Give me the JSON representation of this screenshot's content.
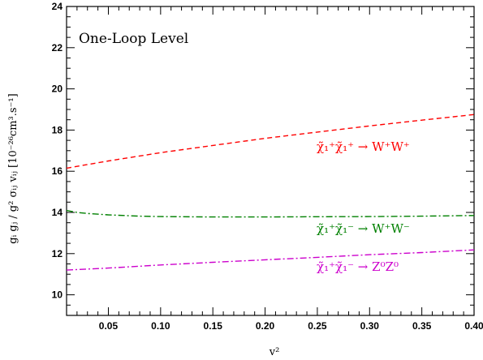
{
  "chart_data": {
    "type": "line",
    "annotation": "One-Loop Level",
    "xlabel": "v²",
    "ylabel": "gᵢ gⱼ / g² σᵢⱼ vᵢⱼ  [10⁻²⁶cm³.s⁻¹]",
    "xlim": [
      0.01,
      0.4
    ],
    "ylim": [
      9,
      24
    ],
    "x_ticks": [
      0.05,
      0.1,
      0.15,
      0.2,
      0.25,
      0.3,
      0.35,
      0.4
    ],
    "x_tick_labels": [
      "0.05",
      "0.10",
      "0.15",
      "0.20",
      "0.25",
      "0.30",
      "0.35",
      "0.40"
    ],
    "y_ticks": [
      10,
      12,
      14,
      16,
      18,
      20,
      22,
      24
    ],
    "y_tick_labels": [
      "10",
      "12",
      "14",
      "16",
      "18",
      "20",
      "22",
      "24"
    ],
    "grid": false,
    "legend": "inline-labels",
    "series": [
      {
        "name": "χ̃₁⁺χ̃₁⁺ → W⁺W⁺",
        "color": "#ff0000",
        "style": "dashed",
        "x": [
          0.01,
          0.05,
          0.1,
          0.15,
          0.2,
          0.25,
          0.3,
          0.35,
          0.4
        ],
        "y": [
          16.15,
          16.5,
          16.9,
          17.25,
          17.6,
          17.9,
          18.2,
          18.48,
          18.75
        ]
      },
      {
        "name": "χ̃₁⁺χ̃₁⁻ → W⁺W⁻",
        "color": "#008000",
        "style": "dashdot",
        "x": [
          0.01,
          0.02,
          0.03,
          0.05,
          0.08,
          0.1,
          0.15,
          0.2,
          0.25,
          0.3,
          0.35,
          0.4
        ],
        "y": [
          14.1,
          14.0,
          13.95,
          13.88,
          13.82,
          13.8,
          13.78,
          13.78,
          13.79,
          13.8,
          13.82,
          13.85
        ]
      },
      {
        "name": "χ̃₁⁺χ̃₁⁻ → Z⁰Z⁰",
        "color": "#cc00cc",
        "style": "dashdot",
        "x": [
          0.01,
          0.05,
          0.1,
          0.15,
          0.2,
          0.25,
          0.3,
          0.35,
          0.4
        ],
        "y": [
          11.2,
          11.3,
          11.45,
          11.58,
          11.7,
          11.82,
          11.95,
          12.05,
          12.18
        ]
      }
    ]
  }
}
